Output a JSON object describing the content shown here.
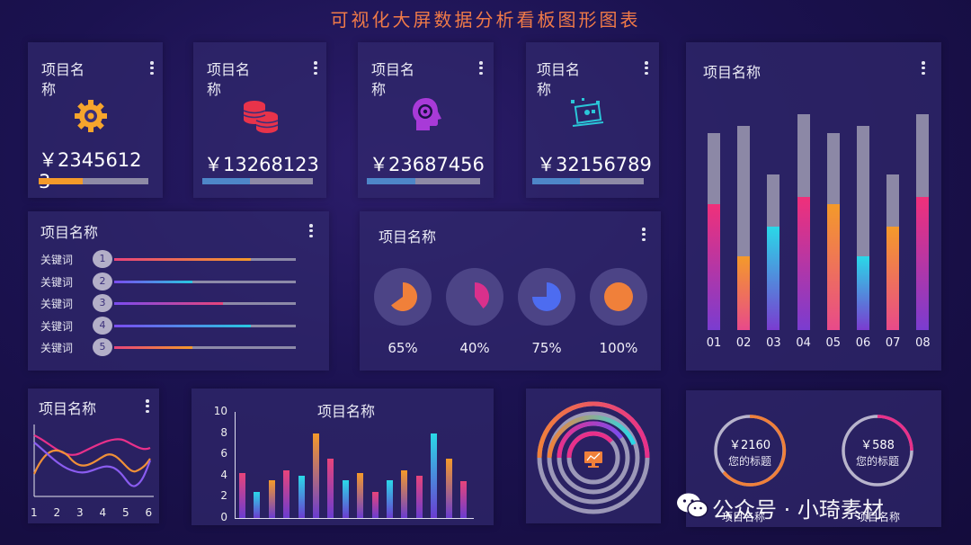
{
  "title": "可视化大屏数据分析看板图形图表",
  "kpi": [
    {
      "label": "项目名称",
      "amount": "￥23456123",
      "icon": "gear-icon",
      "fill": 0.4,
      "color": "#f49a2a"
    },
    {
      "label": "项目名称",
      "amount": "￥13268123",
      "icon": "coins-icon",
      "fill": 0.43,
      "color": "#4e86c8"
    },
    {
      "label": "项目名称",
      "amount": "￥23687456",
      "icon": "head-gear-icon",
      "fill": 0.43,
      "color": "#4e86c8"
    },
    {
      "label": "项目名称",
      "amount": "￥32156789",
      "icon": "laptop-icon",
      "fill": 0.43,
      "color": "#4e86c8"
    }
  ],
  "keywords": {
    "label": "项目名称",
    "items": [
      {
        "kw": "关键词",
        "num": "1",
        "fill": 0.75,
        "c1": "#e8447a",
        "c2": "#f49a2a"
      },
      {
        "kw": "关键词",
        "num": "2",
        "fill": 0.43,
        "c1": "#7a4cf0",
        "c2": "#28c8e0"
      },
      {
        "kw": "关键词",
        "num": "3",
        "fill": 0.6,
        "c1": "#7a4cf0",
        "c2": "#e8447a"
      },
      {
        "kw": "关键词",
        "num": "4",
        "fill": 0.75,
        "c1": "#7a4cf0",
        "c2": "#28c8e0"
      },
      {
        "kw": "关键词",
        "num": "5",
        "fill": 0.43,
        "c1": "#e8447a",
        "c2": "#f49a2a"
      }
    ]
  },
  "pies": {
    "label": "项目名称",
    "items": [
      {
        "pct": "65%",
        "value": 0.65,
        "color": "#f0803a"
      },
      {
        "pct": "40%",
        "value": 0.4,
        "color": "#d9308c"
      },
      {
        "pct": "75%",
        "value": 0.75,
        "color": "#4d6cf0"
      },
      {
        "pct": "100%",
        "value": 1.0,
        "color": "#f0803a"
      }
    ]
  },
  "stack_chart": {
    "label": "项目名称",
    "categories": [
      "01",
      "02",
      "03",
      "04",
      "05",
      "06",
      "07",
      "08"
    ],
    "totals": [
      0.86,
      0.89,
      0.68,
      0.94,
      0.86,
      0.89,
      0.68,
      0.94
    ],
    "values": [
      0.55,
      0.32,
      0.45,
      0.58,
      0.55,
      0.32,
      0.45,
      0.58
    ],
    "colors": [
      [
        "#f0307a",
        "#7a3cd0"
      ],
      [
        "#f49a2a",
        "#e84a8a"
      ],
      [
        "#2ad8e8",
        "#7a3cd0"
      ],
      [
        "#f0307a",
        "#7a3cd0"
      ],
      [
        "#f49a2a",
        "#e84a8a"
      ],
      [
        "#2ad8e8",
        "#7a3cd0"
      ],
      [
        "#f49a2a",
        "#e84a8a"
      ],
      [
        "#f0307a",
        "#7a3cd0"
      ]
    ]
  },
  "line_chart": {
    "label": "项目名称",
    "x": [
      "1",
      "2",
      "3",
      "4",
      "5",
      "6"
    ]
  },
  "bar_chart": {
    "label": "项目名称",
    "yticks": [
      "10",
      "8",
      "6",
      "4",
      "2",
      "0"
    ],
    "values": [
      4.3,
      2.5,
      3.6,
      4.5,
      4.0,
      8.0,
      5.6,
      3.6,
      4.3,
      2.5,
      3.6,
      4.5,
      4.0,
      8.0,
      5.6,
      3.5
    ],
    "colors": [
      "#e8447a",
      "#2ad8e8",
      "#f49a2a",
      "#e8447a",
      "#2ad8e8",
      "#f49a2a",
      "#e8447a",
      "#2ad8e8",
      "#f49a2a",
      "#e8447a",
      "#2ad8e8",
      "#f49a2a",
      "#e8447a",
      "#2ad8e8",
      "#f49a2a",
      "#e8447a"
    ]
  },
  "gauges": [
    {
      "amount": "￥2160",
      "caption": "您的标题",
      "label": "项目名称",
      "color": "#f0803a"
    },
    {
      "amount": "￥588",
      "caption": "您的标题",
      "label": "项目名称",
      "color": "#e8308a"
    }
  ],
  "watermark": "公众号 · 小琦素材"
}
